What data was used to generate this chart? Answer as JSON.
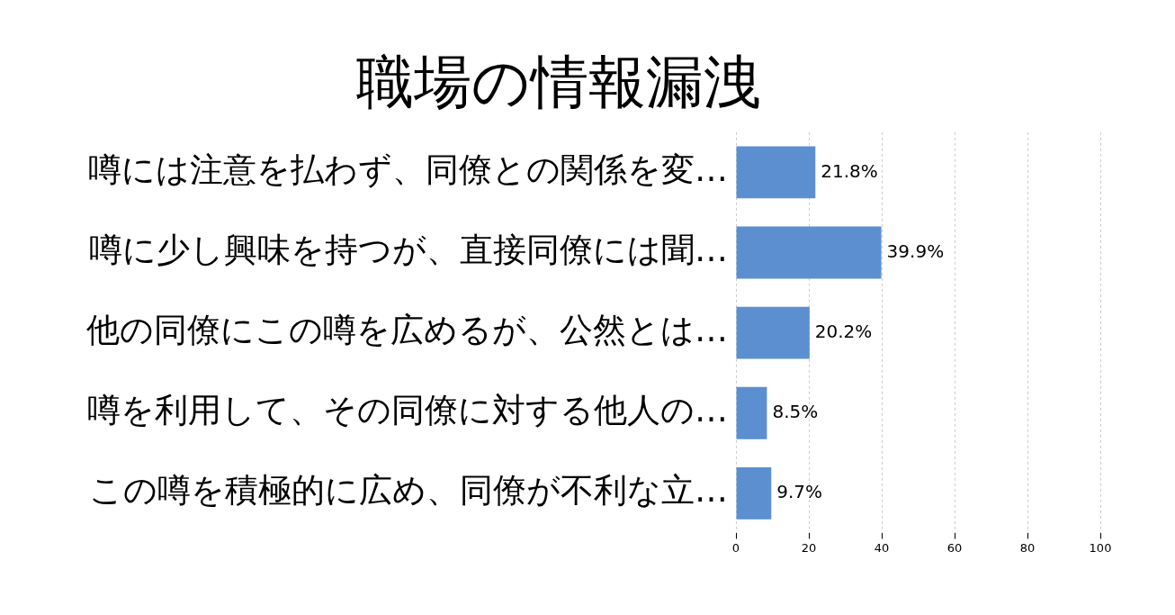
{
  "chart_data": {
    "type": "bar",
    "orientation": "horizontal",
    "title": "職場の情報漏洩",
    "categories": [
      "噂には注意を払わず、同僚との関係を変…",
      "噂に少し興味を持つが、直接同僚には聞…",
      "他の同僚にこの噂を広めるが、公然とは…",
      "噂を利用して、その同僚に対する他人の…",
      "この噂を積極的に広め、同僚が不利な立…"
    ],
    "values": [
      21.8,
      39.9,
      20.2,
      8.5,
      9.7
    ],
    "value_labels": [
      "21.8%",
      "39.9%",
      "20.2%",
      "8.5%",
      "9.7%"
    ],
    "color": "#5b8fd0",
    "xlim": [
      0,
      100
    ],
    "xticks": [
      0,
      20,
      40,
      60,
      80,
      100
    ],
    "grid": "x",
    "legend": false
  }
}
